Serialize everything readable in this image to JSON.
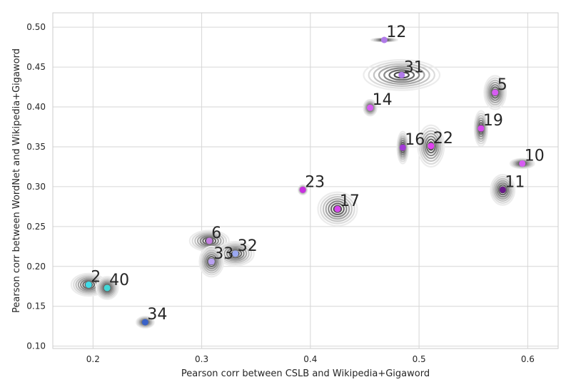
{
  "chart_data": {
    "type": "scatter",
    "xlabel": "Pearson corr between CSLB and Wikipedia+Gigaword",
    "ylabel": "Pearson corr between WordNet and Wikipedia+Gigaword",
    "xlim": [
      0.163,
      0.628
    ],
    "ylim": [
      0.097,
      0.518
    ],
    "x_ticks": [
      "0.2",
      "0.3",
      "0.4",
      "0.5",
      "0.6"
    ],
    "y_ticks": [
      "0.10",
      "0.15",
      "0.20",
      "0.25",
      "0.30",
      "0.35",
      "0.40",
      "0.45",
      "0.50"
    ],
    "grid": true,
    "points": [
      {
        "label": "12",
        "x": 0.468,
        "y": 0.484,
        "sx": 0.012,
        "sy": 0.002,
        "color": "#b07ae8"
      },
      {
        "label": "31",
        "x": 0.484,
        "y": 0.44,
        "sx": 0.035,
        "sy": 0.019,
        "color": "#b07ae8"
      },
      {
        "label": "5",
        "x": 0.57,
        "y": 0.418,
        "sx": 0.01,
        "sy": 0.021,
        "color": "#d65cf2"
      },
      {
        "label": "14",
        "x": 0.455,
        "y": 0.399,
        "sx": 0.006,
        "sy": 0.01,
        "color": "#d65cf2"
      },
      {
        "label": "19",
        "x": 0.557,
        "y": 0.373,
        "sx": 0.006,
        "sy": 0.022,
        "color": "#d848ee"
      },
      {
        "label": "16",
        "x": 0.485,
        "y": 0.349,
        "sx": 0.005,
        "sy": 0.02,
        "color": "#a13ad6"
      },
      {
        "label": "22",
        "x": 0.511,
        "y": 0.351,
        "sx": 0.012,
        "sy": 0.026,
        "color": "#e040f0"
      },
      {
        "label": "10",
        "x": 0.595,
        "y": 0.329,
        "sx": 0.011,
        "sy": 0.006,
        "color": "#d65cf2"
      },
      {
        "label": "23",
        "x": 0.393,
        "y": 0.296,
        "sx": 0.004,
        "sy": 0.006,
        "color": "#c830e0"
      },
      {
        "label": "11",
        "x": 0.577,
        "y": 0.296,
        "sx": 0.011,
        "sy": 0.019,
        "color": "#6a1a8a"
      },
      {
        "label": "17",
        "x": 0.425,
        "y": 0.272,
        "sx": 0.018,
        "sy": 0.021,
        "color": "#d848ee"
      },
      {
        "label": "6",
        "x": 0.307,
        "y": 0.232,
        "sx": 0.018,
        "sy": 0.013,
        "color": "#c27ee0"
      },
      {
        "label": "32",
        "x": 0.331,
        "y": 0.216,
        "sx": 0.017,
        "sy": 0.015,
        "color": "#9aa8f0"
      },
      {
        "label": "33",
        "x": 0.309,
        "y": 0.206,
        "sx": 0.011,
        "sy": 0.019,
        "color": "#b8a0f0"
      },
      {
        "label": "2",
        "x": 0.196,
        "y": 0.177,
        "sx": 0.016,
        "sy": 0.014,
        "color": "#40dce8"
      },
      {
        "label": "40",
        "x": 0.213,
        "y": 0.173,
        "sx": 0.01,
        "sy": 0.014,
        "color": "#40d8d8"
      },
      {
        "label": "34",
        "x": 0.248,
        "y": 0.13,
        "sx": 0.008,
        "sy": 0.007,
        "color": "#3a62c8"
      }
    ]
  }
}
